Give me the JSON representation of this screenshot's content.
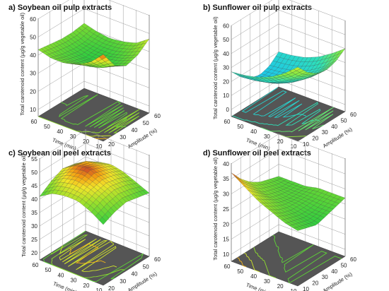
{
  "chart_data": [
    {
      "type": "surface3d",
      "title": "a) Soybean oil pulp extracts",
      "zlabel": "Total carotenoid content (µg/g vegetable oil)",
      "xlabel": "Time (min)",
      "ylabel": "Amplitude (%)",
      "xlim": [
        10,
        60
      ],
      "ylim": [
        20,
        60
      ],
      "zlim": [
        10,
        60
      ],
      "xticks": [
        "60",
        "50",
        "40",
        "30",
        "20",
        "10"
      ],
      "yticks": [
        "20",
        "30",
        "40",
        "50",
        "60"
      ],
      "zticks": [
        "10",
        "20",
        "30",
        "40",
        "50",
        "60"
      ],
      "surface": {
        "time": [
          10,
          20,
          30,
          40,
          50,
          60
        ],
        "amplitude": [
          20,
          30,
          40,
          50,
          60
        ],
        "z": [
          [
            54,
            44,
            40,
            42,
            47
          ],
          [
            47,
            40,
            37,
            39,
            42
          ],
          [
            43,
            38,
            36,
            37,
            40
          ],
          [
            41,
            38,
            36,
            37,
            39
          ],
          [
            41,
            39,
            38,
            38,
            40
          ],
          [
            43,
            42,
            41,
            41,
            42
          ]
        ]
      },
      "colorscale": "green-yellow-red"
    },
    {
      "type": "surface3d",
      "title": "b) Sunflower oil pulp extracts",
      "zlabel": "Total carotenoid content (µg/g vegetable oil)",
      "xlabel": "Time (min)",
      "ylabel": "Amplitude (%)",
      "xlim": [
        10,
        60
      ],
      "ylim": [
        10,
        60
      ],
      "zlim": [
        0,
        60
      ],
      "xticks": [
        "60",
        "50",
        "40",
        "30",
        "20",
        "10"
      ],
      "yticks": [
        "10",
        "20",
        "30",
        "40",
        "50",
        "60"
      ],
      "zticks": [
        "0",
        "10",
        "20",
        "30",
        "40",
        "50",
        "60"
      ],
      "surface": {
        "time": [
          10,
          20,
          30,
          40,
          50,
          60
        ],
        "amplitude": [
          10,
          20,
          30,
          40,
          50,
          60
        ],
        "z": [
          [
            48,
            40,
            35,
            33,
            35,
            40
          ],
          [
            40,
            32,
            27,
            25,
            27,
            33
          ],
          [
            34,
            26,
            21,
            19,
            21,
            27
          ],
          [
            30,
            22,
            17,
            15,
            17,
            23
          ],
          [
            28,
            20,
            15,
            13,
            15,
            21
          ],
          [
            27,
            19,
            14,
            12,
            14,
            20
          ]
        ]
      },
      "colorscale": "cyan-green"
    },
    {
      "type": "surface3d",
      "title": "c) Soybean oil peel extracts",
      "zlabel": "Total carotenoid content (µg/g vegetable oil)",
      "xlabel": "Time (min)",
      "ylabel": "Amplitude (%)",
      "xlim": [
        10,
        60
      ],
      "ylim": [
        20,
        60
      ],
      "zlim": [
        20,
        55
      ],
      "xticks": [
        "60",
        "50",
        "40",
        "30",
        "20",
        "10"
      ],
      "yticks": [
        "20",
        "30",
        "40",
        "50",
        "60"
      ],
      "zticks": [
        "20",
        "25",
        "30",
        "35",
        "40",
        "45",
        "50",
        "55"
      ],
      "surface": {
        "time": [
          10,
          20,
          30,
          40,
          50,
          60
        ],
        "amplitude": [
          20,
          30,
          40,
          50,
          60
        ],
        "z": [
          [
            40,
            42,
            43,
            42,
            41
          ],
          [
            43,
            45,
            46,
            45,
            43
          ],
          [
            45,
            47,
            48,
            47,
            45
          ],
          [
            45,
            48,
            50,
            48,
            46
          ],
          [
            44,
            47,
            49,
            48,
            45
          ],
          [
            41,
            44,
            46,
            45,
            42
          ]
        ]
      },
      "colorscale": "green-yellow-red"
    },
    {
      "type": "surface3d",
      "title": "d) Sunflower oil peel extracts",
      "zlabel": "Total carotenoid content (µg/g vegetable oil)",
      "xlabel": "Time (min)",
      "ylabel": "Amplitude (%)",
      "xlim": [
        10,
        60
      ],
      "ylim": [
        10,
        60
      ],
      "zlim": [
        10,
        40
      ],
      "xticks": [
        "60",
        "50",
        "40",
        "30",
        "20",
        "10"
      ],
      "yticks": [
        "10",
        "20",
        "30",
        "40",
        "50",
        "60"
      ],
      "zticks": [
        "10",
        "15",
        "20",
        "25",
        "30",
        "35",
        "40"
      ],
      "surface": {
        "time": [
          10,
          20,
          30,
          40,
          50,
          60
        ],
        "amplitude": [
          10,
          20,
          30,
          40,
          50,
          60
        ],
        "z": [
          [
            26,
            25,
            24,
            25,
            26,
            27
          ],
          [
            27,
            26,
            25,
            25,
            26,
            27
          ],
          [
            29,
            27,
            26,
            26,
            26,
            27
          ],
          [
            31,
            29,
            27,
            26,
            26,
            26
          ],
          [
            34,
            31,
            28,
            27,
            26,
            26
          ],
          [
            37,
            33,
            30,
            28,
            27,
            26
          ]
        ]
      },
      "colorscale": "green-yellow-red"
    }
  ]
}
